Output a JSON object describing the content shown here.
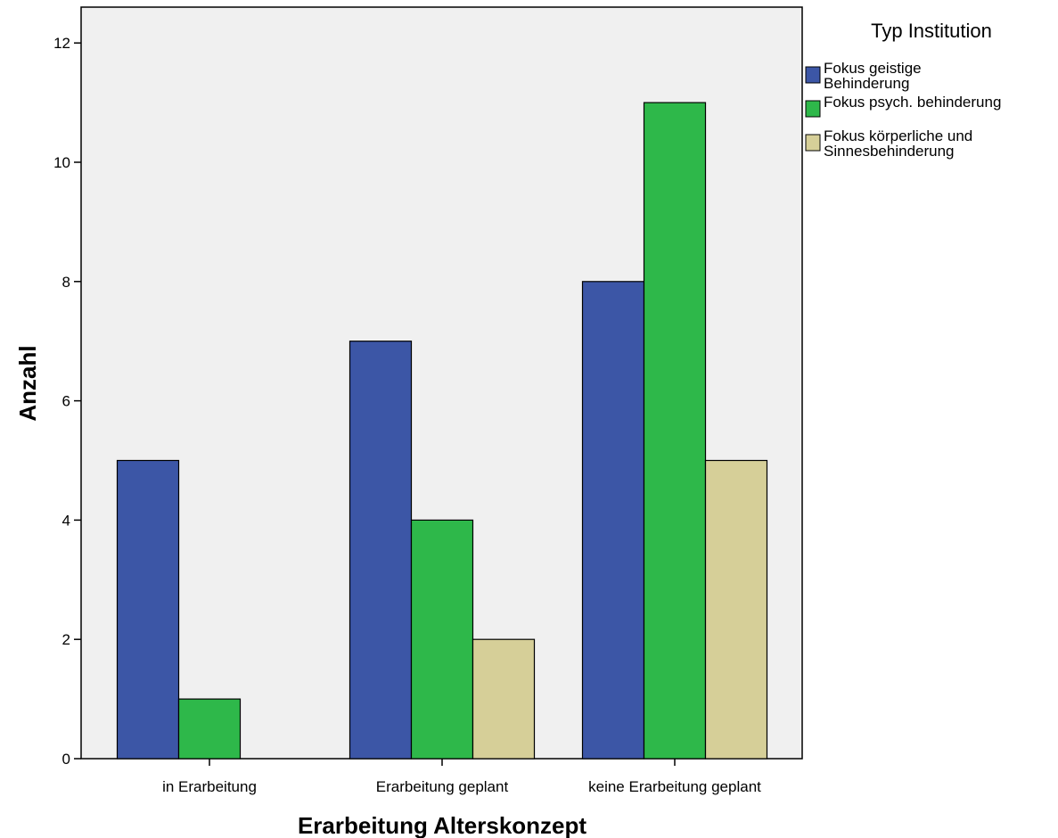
{
  "chart_data": {
    "type": "bar",
    "title": "",
    "xlabel": "Erarbeitung Alterskonzept",
    "ylabel": "Anzahl",
    "categories": [
      "in Erarbeitung",
      "Erarbeitung geplant",
      "keine Erarbeitung geplant"
    ],
    "series": [
      {
        "name": "Fokus geistige Behinderung",
        "name_lines": [
          "Fokus geistige",
          "Behinderung"
        ],
        "color": "#3c56a6",
        "values": [
          5,
          7,
          8
        ]
      },
      {
        "name": "Fokus psych. behinderung",
        "name_lines": [
          "Fokus psych. behinderung"
        ],
        "color": "#2eb84a",
        "values": [
          1,
          4,
          11
        ]
      },
      {
        "name": "Fokus körperliche und Sinnesbehinderung",
        "name_lines": [
          "Fokus körperliche und",
          "Sinnesbehinderung"
        ],
        "color": "#d6cf98",
        "values": [
          0,
          2,
          5
        ]
      }
    ],
    "ylim": [
      0,
      12.6
    ],
    "yticks": [
      0,
      2,
      4,
      6,
      8,
      10,
      12
    ],
    "grid": false,
    "legend": {
      "title": "Typ Institution",
      "placement": "right"
    },
    "plot_background": "#f0f0f0"
  }
}
